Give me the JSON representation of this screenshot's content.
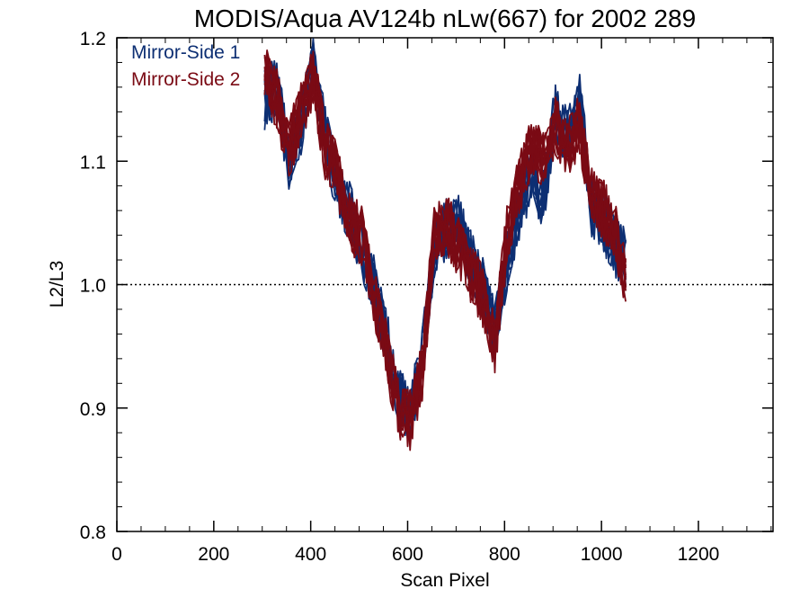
{
  "chart_data": {
    "type": "line",
    "title": "MODIS/Aqua AV124b nLw(667) for 2002 289",
    "xlabel": "Scan Pixel",
    "ylabel": "L2/L3",
    "xlim": [
      0,
      1354
    ],
    "ylim": [
      0.8,
      1.2
    ],
    "x_ticks": [
      0,
      200,
      400,
      600,
      800,
      1000,
      1200
    ],
    "x_tick_labels": [
      "0",
      "200",
      "400",
      "600",
      "800",
      "1000",
      "1200"
    ],
    "y_ticks": [
      0.8,
      0.9,
      1.0,
      1.1,
      1.2
    ],
    "y_tick_labels": [
      "0.8",
      "0.9",
      "1.0",
      "1.1",
      "1.2"
    ],
    "reference_line": {
      "y": 1.0,
      "style": "dotted"
    },
    "grid": false,
    "legend": "top-left",
    "colors": {
      "mirror_side_1": "#0d2f73",
      "mirror_side_2": "#7a0a14",
      "axes": "#000000"
    },
    "x": [
      305,
      330,
      355,
      380,
      405,
      430,
      455,
      480,
      505,
      530,
      555,
      580,
      605,
      630,
      655,
      680,
      705,
      730,
      755,
      780,
      805,
      830,
      855,
      880,
      905,
      930,
      955,
      980,
      1005,
      1030,
      1050
    ],
    "series": [
      {
        "name": "Mirror-Side 1",
        "color": "#0d2f73",
        "values": [
          1.15,
          1.16,
          1.1,
          1.13,
          1.175,
          1.12,
          1.08,
          1.06,
          1.03,
          1.0,
          0.96,
          0.91,
          0.895,
          0.94,
          1.03,
          1.045,
          1.05,
          1.02,
          1.0,
          0.96,
          1.02,
          1.06,
          1.09,
          1.07,
          1.14,
          1.12,
          1.15,
          1.06,
          1.05,
          1.03,
          1.02
        ]
      },
      {
        "name": "Mirror-Side 2",
        "color": "#7a0a14",
        "values": [
          1.17,
          1.15,
          1.11,
          1.14,
          1.17,
          1.11,
          1.09,
          1.05,
          1.04,
          0.99,
          0.95,
          0.9,
          0.89,
          0.93,
          1.04,
          1.05,
          1.03,
          1.01,
          0.99,
          0.95,
          1.04,
          1.08,
          1.11,
          1.1,
          1.13,
          1.11,
          1.13,
          1.07,
          1.06,
          1.04,
          1.0
        ]
      }
    ]
  }
}
